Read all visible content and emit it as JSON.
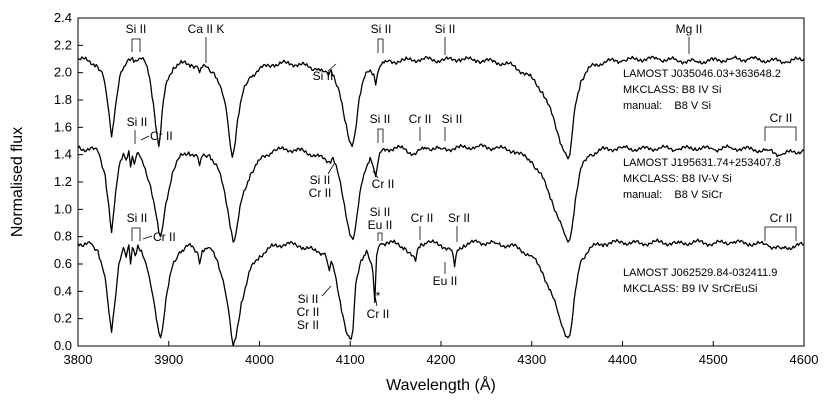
{
  "chart_data": {
    "type": "line",
    "xlabel": "Wavelength (Å)",
    "ylabel": "Normalised flux",
    "xlim": [
      3800,
      4600
    ],
    "ylim": [
      0.0,
      2.4
    ],
    "grid": false,
    "xticks": [
      3800,
      3900,
      4000,
      4100,
      4200,
      4300,
      4400,
      4500,
      4600
    ],
    "yticks": [
      0.0,
      0.2,
      0.4,
      0.6,
      0.8,
      1.0,
      1.2,
      1.4,
      1.6,
      1.8,
      2.0,
      2.2,
      2.4
    ],
    "xtick_labels": [
      "3800",
      "3900",
      "4000",
      "4100",
      "4200",
      "4300",
      "4400",
      "4500",
      "4600"
    ],
    "ytick_labels": [
      "0.0",
      "0.2",
      "0.4",
      "0.6",
      "0.8",
      "1.0",
      "1.2",
      "1.4",
      "1.6",
      "1.8",
      "2.0",
      "2.2",
      "2.4"
    ],
    "series": [
      {
        "color": "#000000",
        "x": [
          3800,
          3810,
          3820,
          3828,
          3833,
          3837,
          3841,
          3846,
          3852,
          3856,
          3860,
          3863,
          3866,
          3870,
          3875,
          3879,
          3883,
          3887,
          3889,
          3891,
          3894,
          3898,
          3905,
          3915,
          3925,
          3932,
          3934,
          3937,
          3942,
          3950,
          3958,
          3964,
          3968,
          3970,
          3972,
          3976,
          3982,
          3990,
          4000,
          4015,
          4030,
          4045,
          4055,
          4062,
          4070,
          4076,
          4079,
          4082,
          4088,
          4094,
          4099,
          4102,
          4105,
          4110,
          4116,
          4122,
          4126,
          4128,
          4130,
          4133,
          4140,
          4160,
          4180,
          4200,
          4220,
          4240,
          4260,
          4280,
          4300,
          4312,
          4322,
          4330,
          4336,
          4340,
          4342,
          4344,
          4348,
          4354,
          4364,
          4380,
          4400,
          4420,
          4440,
          4460,
          4481,
          4500,
          4520,
          4540,
          4560,
          4580,
          4600
        ],
        "y": [
          2.1,
          2.09,
          2.06,
          1.97,
          1.76,
          1.53,
          1.74,
          1.97,
          2.05,
          2.1,
          2.11,
          2.09,
          2.09,
          2.1,
          2.06,
          1.96,
          1.78,
          1.55,
          1.46,
          1.56,
          1.79,
          1.94,
          2.04,
          2.07,
          2.06,
          2.04,
          2.0,
          2.04,
          2.04,
          2.0,
          1.88,
          1.7,
          1.46,
          1.38,
          1.44,
          1.66,
          1.86,
          1.97,
          2.03,
          2.06,
          2.07,
          2.06,
          2.04,
          2.03,
          2.01,
          1.98,
          2.02,
          1.98,
          1.86,
          1.65,
          1.5,
          1.46,
          1.55,
          1.82,
          1.97,
          2.02,
          1.99,
          1.91,
          1.99,
          2.05,
          2.08,
          2.09,
          2.1,
          2.09,
          2.1,
          2.09,
          2.08,
          2.05,
          1.96,
          1.86,
          1.7,
          1.53,
          1.42,
          1.37,
          1.4,
          1.52,
          1.76,
          1.94,
          2.04,
          2.08,
          2.09,
          2.1,
          2.1,
          2.09,
          2.08,
          2.09,
          2.1,
          2.1,
          2.09,
          2.08,
          2.1
        ]
      },
      {
        "color": "#000000",
        "x": [
          3800,
          3806,
          3814,
          3822,
          3830,
          3834,
          3837,
          3840,
          3845,
          3850,
          3853,
          3856,
          3858,
          3860,
          3862,
          3865,
          3869,
          3874,
          3880,
          3885,
          3889,
          3891,
          3893,
          3897,
          3904,
          3912,
          3922,
          3932,
          3934,
          3937,
          3945,
          3954,
          3960,
          3965,
          3969,
          3971,
          3974,
          3980,
          3990,
          4000,
          4015,
          4030,
          4045,
          4060,
          4070,
          4077,
          4081,
          4086,
          4092,
          4097,
          4101,
          4103,
          4106,
          4112,
          4118,
          4122,
          4125,
          4127,
          4128,
          4129,
          4131,
          4134,
          4140,
          4150,
          4160,
          4172,
          4178,
          4185,
          4200,
          4220,
          4240,
          4260,
          4280,
          4300,
          4312,
          4322,
          4330,
          4336,
          4340,
          4342,
          4344,
          4348,
          4354,
          4364,
          4380,
          4400,
          4420,
          4440,
          4460,
          4480,
          4500,
          4520,
          4540,
          4560,
          4575,
          4588,
          4600
        ],
        "y": [
          1.45,
          1.44,
          1.45,
          1.42,
          1.25,
          1.02,
          0.83,
          1.02,
          1.3,
          1.41,
          1.36,
          1.43,
          1.31,
          1.39,
          1.33,
          1.41,
          1.38,
          1.3,
          1.17,
          1.0,
          0.83,
          0.8,
          0.86,
          1.05,
          1.27,
          1.38,
          1.42,
          1.38,
          1.32,
          1.39,
          1.4,
          1.3,
          1.17,
          1.0,
          0.84,
          0.76,
          0.82,
          1.06,
          1.26,
          1.36,
          1.43,
          1.44,
          1.43,
          1.4,
          1.37,
          1.35,
          1.38,
          1.28,
          1.08,
          0.9,
          0.8,
          0.78,
          0.88,
          1.17,
          1.31,
          1.38,
          1.32,
          1.27,
          1.24,
          1.28,
          1.36,
          1.42,
          1.44,
          1.45,
          1.44,
          1.4,
          1.44,
          1.45,
          1.44,
          1.45,
          1.46,
          1.45,
          1.43,
          1.35,
          1.23,
          1.07,
          0.92,
          0.82,
          0.76,
          0.78,
          0.85,
          1.07,
          1.3,
          1.4,
          1.44,
          1.45,
          1.44,
          1.45,
          1.44,
          1.45,
          1.44,
          1.45,
          1.44,
          1.43,
          1.4,
          1.42,
          1.43
        ]
      },
      {
        "color": "#000000",
        "x": [
          3800,
          3806,
          3814,
          3822,
          3830,
          3834,
          3837,
          3840,
          3845,
          3850,
          3853,
          3856,
          3858,
          3860,
          3863,
          3866,
          3870,
          3875,
          3880,
          3885,
          3889,
          3891,
          3893,
          3897,
          3904,
          3912,
          3922,
          3932,
          3934,
          3937,
          3945,
          3954,
          3960,
          3965,
          3969,
          3971,
          3974,
          3980,
          3990,
          4000,
          4015,
          4030,
          4045,
          4060,
          4072,
          4077,
          4079,
          4081,
          4086,
          4092,
          4097,
          4101,
          4103,
          4106,
          4112,
          4118,
          4122,
          4125,
          4127,
          4128,
          4129,
          4131,
          4134,
          4140,
          4150,
          4160,
          4172,
          4174,
          4178,
          4185,
          4200,
          4212,
          4215,
          4218,
          4225,
          4240,
          4260,
          4280,
          4300,
          4312,
          4322,
          4330,
          4336,
          4340,
          4342,
          4344,
          4348,
          4354,
          4364,
          4380,
          4400,
          4420,
          4440,
          4460,
          4480,
          4500,
          4520,
          4540,
          4560,
          4575,
          4588,
          4600
        ],
        "y": [
          0.75,
          0.73,
          0.75,
          0.7,
          0.5,
          0.25,
          0.1,
          0.28,
          0.6,
          0.72,
          0.65,
          0.74,
          0.6,
          0.72,
          0.66,
          0.74,
          0.7,
          0.6,
          0.45,
          0.27,
          0.1,
          0.06,
          0.12,
          0.35,
          0.58,
          0.69,
          0.74,
          0.68,
          0.6,
          0.7,
          0.72,
          0.62,
          0.48,
          0.3,
          0.08,
          0.0,
          0.06,
          0.32,
          0.56,
          0.66,
          0.73,
          0.75,
          0.73,
          0.7,
          0.68,
          0.55,
          0.62,
          0.59,
          0.42,
          0.22,
          0.08,
          0.05,
          0.12,
          0.45,
          0.63,
          0.7,
          0.62,
          0.54,
          0.32,
          0.5,
          0.66,
          0.72,
          0.75,
          0.76,
          0.75,
          0.72,
          0.62,
          0.7,
          0.75,
          0.76,
          0.74,
          0.7,
          0.58,
          0.7,
          0.74,
          0.76,
          0.75,
          0.73,
          0.66,
          0.54,
          0.38,
          0.22,
          0.1,
          0.06,
          0.08,
          0.16,
          0.4,
          0.62,
          0.72,
          0.75,
          0.76,
          0.75,
          0.76,
          0.75,
          0.76,
          0.75,
          0.76,
          0.75,
          0.74,
          0.71,
          0.73,
          0.74
        ]
      }
    ],
    "annotations": {
      "star_labels": [
        {
          "name": "LAMOST J035046.03+363648.2",
          "mkclass": "MKCLASS: B8 IV Si",
          "manual": "manual:    B8 V Si"
        },
        {
          "name": "LAMOST J195631.74+253407.8",
          "mkclass": "MKCLASS: B8 IV-V Si",
          "manual": "manual:    B8 V SiCr"
        },
        {
          "name": "LAMOST J062529.84-032411.9",
          "mkclass": "MKCLASS: B9 IV SrCrEuSi",
          "manual": ""
        }
      ],
      "line_ids": {
        "si_ii": "Si II",
        "ca_ii_k": "Ca II K",
        "mg_ii": "Mg II",
        "cr_ii": "Cr II",
        "eu_ii": "Eu II",
        "sr_ii": "Sr II",
        "si_cr": [
          "Si II",
          "Cr II"
        ],
        "si_cr_sr": [
          "Si II",
          "Cr II",
          "Sr II"
        ],
        "asterisk": "*"
      }
    }
  }
}
